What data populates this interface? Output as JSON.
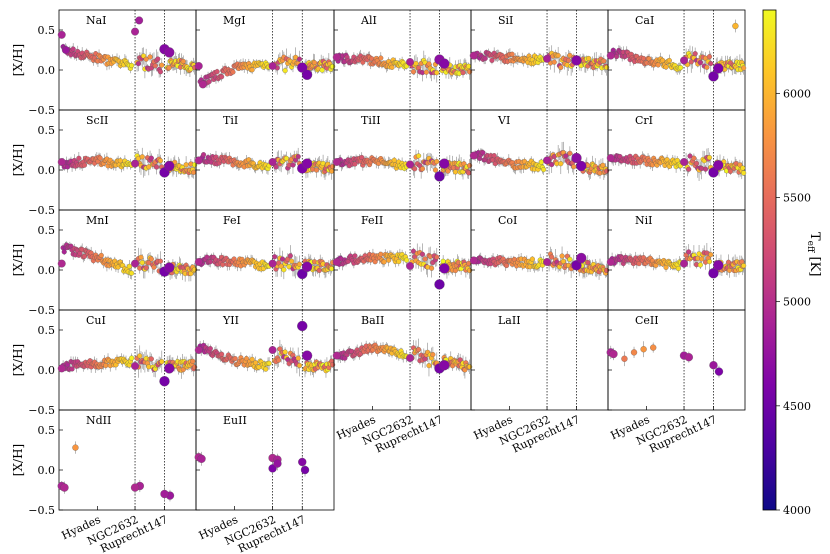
{
  "chart_data": {
    "type": "scatter",
    "ylabel": "[X/H]",
    "ylim": [
      -0.5,
      0.75
    ],
    "yticks": [
      -0.5,
      0.0,
      0.5
    ],
    "ytick_labels": [
      "−0.5",
      "0.0",
      "0.5"
    ],
    "clusters": [
      "Hyades",
      "NGC2632",
      "Ruprecht147"
    ],
    "colorbar": {
      "label": "T_eff [K]",
      "label_main": "T",
      "label_sub": "eff",
      "label_unit": " [K]",
      "min": 4000,
      "max": 6400,
      "ticks": [
        4000,
        4500,
        5000,
        5500,
        6000
      ],
      "colormap": "plasma"
    },
    "panels": [
      {
        "label": "NaI",
        "hy": [
          0.25,
          0.15,
          0.05
        ],
        "ng": [
          0.12,
          0.05
        ],
        "rp": [
          0.08,
          0.05
        ],
        "cold": [
          [
            0.44,
            4900
          ],
          [
            0.25,
            4800
          ]
        ],
        "ngcold": [
          [
            0.48,
            4900
          ],
          [
            0.62,
            4850
          ]
        ],
        "rpcold": [
          [
            0.26,
            4650
          ],
          [
            0.22,
            4700
          ]
        ]
      },
      {
        "label": "MgI",
        "hy": [
          -0.15,
          0.02,
          0.08
        ],
        "ng": [
          0.08,
          0.07
        ],
        "rp": [
          0.05,
          0.05
        ],
        "cold": [
          [
            0.05,
            4900
          ],
          [
            -0.18,
            4950
          ]
        ],
        "ngcold": [
          [
            0.05,
            4900
          ]
        ],
        "rpcold": [
          [
            0.03,
            4600
          ],
          [
            -0.06,
            4550
          ]
        ]
      },
      {
        "label": "AlI",
        "hy": [
          0.15,
          0.12,
          0.05
        ],
        "ng": [
          0.05,
          0.05
        ],
        "rp": [
          0.0,
          0.02
        ],
        "cold": [
          [
            0.16,
            4950
          ]
        ],
        "ngcold": [
          [
            0.1,
            4900
          ]
        ],
        "rpcold": [
          [
            0.13,
            4700
          ],
          [
            0.08,
            4650
          ]
        ]
      },
      {
        "label": "SiI",
        "hy": [
          0.18,
          0.15,
          0.12
        ],
        "ng": [
          0.12,
          0.12
        ],
        "rp": [
          0.1,
          0.08
        ],
        "cold": [
          [
            0.18,
            4950
          ]
        ],
        "ngcold": [
          [
            0.14,
            4900
          ]
        ],
        "rpcold": [
          [
            0.12,
            4650
          ]
        ]
      },
      {
        "label": "CaI",
        "hy": [
          0.22,
          0.12,
          0.05
        ],
        "ng": [
          0.15,
          0.08
        ],
        "rp": [
          0.05,
          0.05
        ],
        "cold": [
          [
            0.18,
            4950
          ]
        ],
        "ngcold": [
          [
            0.12,
            4900
          ]
        ],
        "rpcold": [
          [
            -0.08,
            4550
          ],
          [
            0.02,
            4600
          ]
        ],
        "extra": [
          [
            0.55,
            6000
          ]
        ]
      },
      {
        "label": "ScII",
        "hy": [
          0.08,
          0.12,
          0.05
        ],
        "ng": [
          0.1,
          0.05
        ],
        "rp": [
          0.05,
          0.02
        ],
        "cold": [
          [
            0.1,
            4950
          ]
        ],
        "ngcold": [
          [
            0.08,
            4900
          ]
        ],
        "rpcold": [
          [
            -0.03,
            4550
          ],
          [
            0.05,
            4650
          ]
        ]
      },
      {
        "label": "TiI",
        "hy": [
          0.15,
          0.1,
          0.05
        ],
        "ng": [
          0.12,
          0.1
        ],
        "rp": [
          0.05,
          0.02
        ],
        "cold": [
          [
            0.12,
            4950
          ]
        ],
        "ngcold": [
          [
            0.1,
            4900
          ]
        ],
        "rpcold": [
          [
            0.02,
            4600
          ],
          [
            0.08,
            4650
          ]
        ]
      },
      {
        "label": "TiII",
        "hy": [
          0.08,
          0.12,
          0.05
        ],
        "ng": [
          0.1,
          0.05
        ],
        "rp": [
          0.05,
          0.02
        ],
        "cold": [
          [
            0.1,
            4950
          ]
        ],
        "ngcold": [
          [
            0.07,
            4900
          ]
        ],
        "rpcold": [
          [
            -0.08,
            4500
          ],
          [
            0.08,
            4650
          ]
        ]
      },
      {
        "label": "VI",
        "hy": [
          0.2,
          0.08,
          0.05
        ],
        "ng": [
          0.15,
          0.12
        ],
        "rp": [
          0.05,
          0.0
        ],
        "cold": [
          [
            0.18,
            4950
          ]
        ],
        "ngcold": [
          [
            0.12,
            4900
          ]
        ],
        "rpcold": [
          [
            0.15,
            4700
          ],
          [
            0.05,
            4600
          ]
        ]
      },
      {
        "label": "CrI",
        "hy": [
          0.15,
          0.12,
          0.08
        ],
        "ng": [
          0.1,
          0.08
        ],
        "rp": [
          0.05,
          0.02
        ],
        "cold": [
          [
            0.15,
            4950
          ]
        ],
        "ngcold": [
          [
            0.1,
            4900
          ]
        ],
        "rpcold": [
          [
            -0.03,
            4550
          ],
          [
            0.06,
            4650
          ]
        ]
      },
      {
        "label": "MnI",
        "hy": [
          0.28,
          0.15,
          0.0
        ],
        "ng": [
          0.12,
          0.02
        ],
        "rp": [
          0.02,
          0.0
        ],
        "cold": [
          [
            0.08,
            4950
          ]
        ],
        "ngcold": [
          [
            0.08,
            4900
          ]
        ],
        "rpcold": [
          [
            -0.02,
            4550
          ],
          [
            0.03,
            4650
          ]
        ]
      },
      {
        "label": "FeI",
        "hy": [
          0.12,
          0.1,
          0.05
        ],
        "ng": [
          0.1,
          0.08
        ],
        "rp": [
          0.05,
          0.05
        ],
        "cold": [
          [
            0.1,
            4950
          ]
        ],
        "ngcold": [
          [
            0.08,
            4900
          ]
        ],
        "rpcold": [
          [
            -0.05,
            4500
          ],
          [
            0.04,
            4650
          ]
        ]
      },
      {
        "label": "FeII",
        "hy": [
          0.12,
          0.15,
          0.15
        ],
        "ng": [
          0.15,
          0.1
        ],
        "rp": [
          0.05,
          0.05
        ],
        "cold": [
          [
            0.1,
            4950
          ]
        ],
        "ngcold": [
          [
            0.05,
            4900
          ]
        ],
        "rpcold": [
          [
            -0.18,
            4500
          ],
          [
            0.02,
            4600
          ]
        ]
      },
      {
        "label": "CoI",
        "hy": [
          0.12,
          0.1,
          0.08
        ],
        "ng": [
          0.12,
          0.08
        ],
        "rp": [
          0.05,
          0.02
        ],
        "cold": [
          [
            0.12,
            4950
          ]
        ],
        "ngcold": [
          [
            0.1,
            4900
          ]
        ],
        "rpcold": [
          [
            0.06,
            4550
          ],
          [
            0.15,
            4700
          ]
        ]
      },
      {
        "label": "NiI",
        "hy": [
          0.12,
          0.12,
          0.05
        ],
        "ng": [
          0.15,
          0.12
        ],
        "rp": [
          0.05,
          0.05
        ],
        "cold": [
          [
            0.1,
            4950
          ]
        ],
        "ngcold": [
          [
            0.08,
            4900
          ]
        ],
        "rpcold": [
          [
            -0.04,
            4550
          ],
          [
            0.06,
            4650
          ]
        ]
      },
      {
        "label": "CuI",
        "hy": [
          0.05,
          0.08,
          0.1
        ],
        "ng": [
          0.1,
          0.05
        ],
        "rp": [
          0.05,
          0.05
        ],
        "cold": [
          [
            0.02,
            4950
          ]
        ],
        "ngcold": [
          [
            0.05,
            4900
          ]
        ],
        "rpcold": [
          [
            -0.14,
            4550
          ],
          [
            0.02,
            4650
          ]
        ]
      },
      {
        "label": "YII",
        "hy": [
          0.28,
          0.12,
          0.05
        ],
        "ng": [
          0.2,
          0.1
        ],
        "rp": [
          0.05,
          0.05
        ],
        "cold": [
          [
            0.25,
            4950
          ]
        ],
        "ngcold": [
          [
            0.25,
            4900
          ]
        ],
        "rpcold": [
          [
            0.55,
            4550
          ],
          [
            0.18,
            4650
          ]
        ]
      },
      {
        "label": "BaII",
        "hy": [
          0.15,
          0.28,
          0.2
        ],
        "ng": [
          0.2,
          0.1
        ],
        "rp": [
          0.1,
          0.05
        ],
        "cold": [
          [
            0.18,
            4950
          ]
        ],
        "ngcold": [
          [
            0.15,
            4900
          ]
        ],
        "rpcold": [
          [
            0.02,
            4550
          ],
          [
            0.06,
            4650
          ]
        ]
      },
      {
        "label": "LaII",
        "empty": true
      },
      {
        "label": "CeII",
        "sparse": true,
        "pts": [
          [
            0.22,
            4900
          ],
          [
            0.2,
            4950
          ],
          [
            0.14,
            5600
          ],
          [
            0.22,
            5700
          ],
          [
            0.26,
            5800
          ],
          [
            0.28,
            5750
          ],
          [
            0.18,
            4850
          ],
          [
            0.16,
            4900
          ],
          [
            -0.02,
            4600
          ],
          [
            0.06,
            4800
          ]
        ]
      },
      {
        "label": "NdII",
        "sparse": true,
        "pts": [
          [
            -0.2,
            4900
          ],
          [
            -0.22,
            4950
          ],
          [
            0.28,
            5800
          ],
          [
            -0.2,
            4900
          ],
          [
            -0.22,
            4950
          ],
          [
            -0.32,
            4800
          ],
          [
            -0.3,
            4850
          ]
        ]
      },
      {
        "label": "EuII",
        "sparse": true,
        "pts": [
          [
            0.16,
            4950
          ],
          [
            0.14,
            4900
          ],
          [
            0.15,
            4950
          ],
          [
            0.13,
            4900
          ],
          [
            0.02,
            4600
          ],
          [
            0.08,
            4750
          ],
          [
            0.1,
            4650
          ],
          [
            0.0,
            4550
          ]
        ]
      }
    ]
  }
}
